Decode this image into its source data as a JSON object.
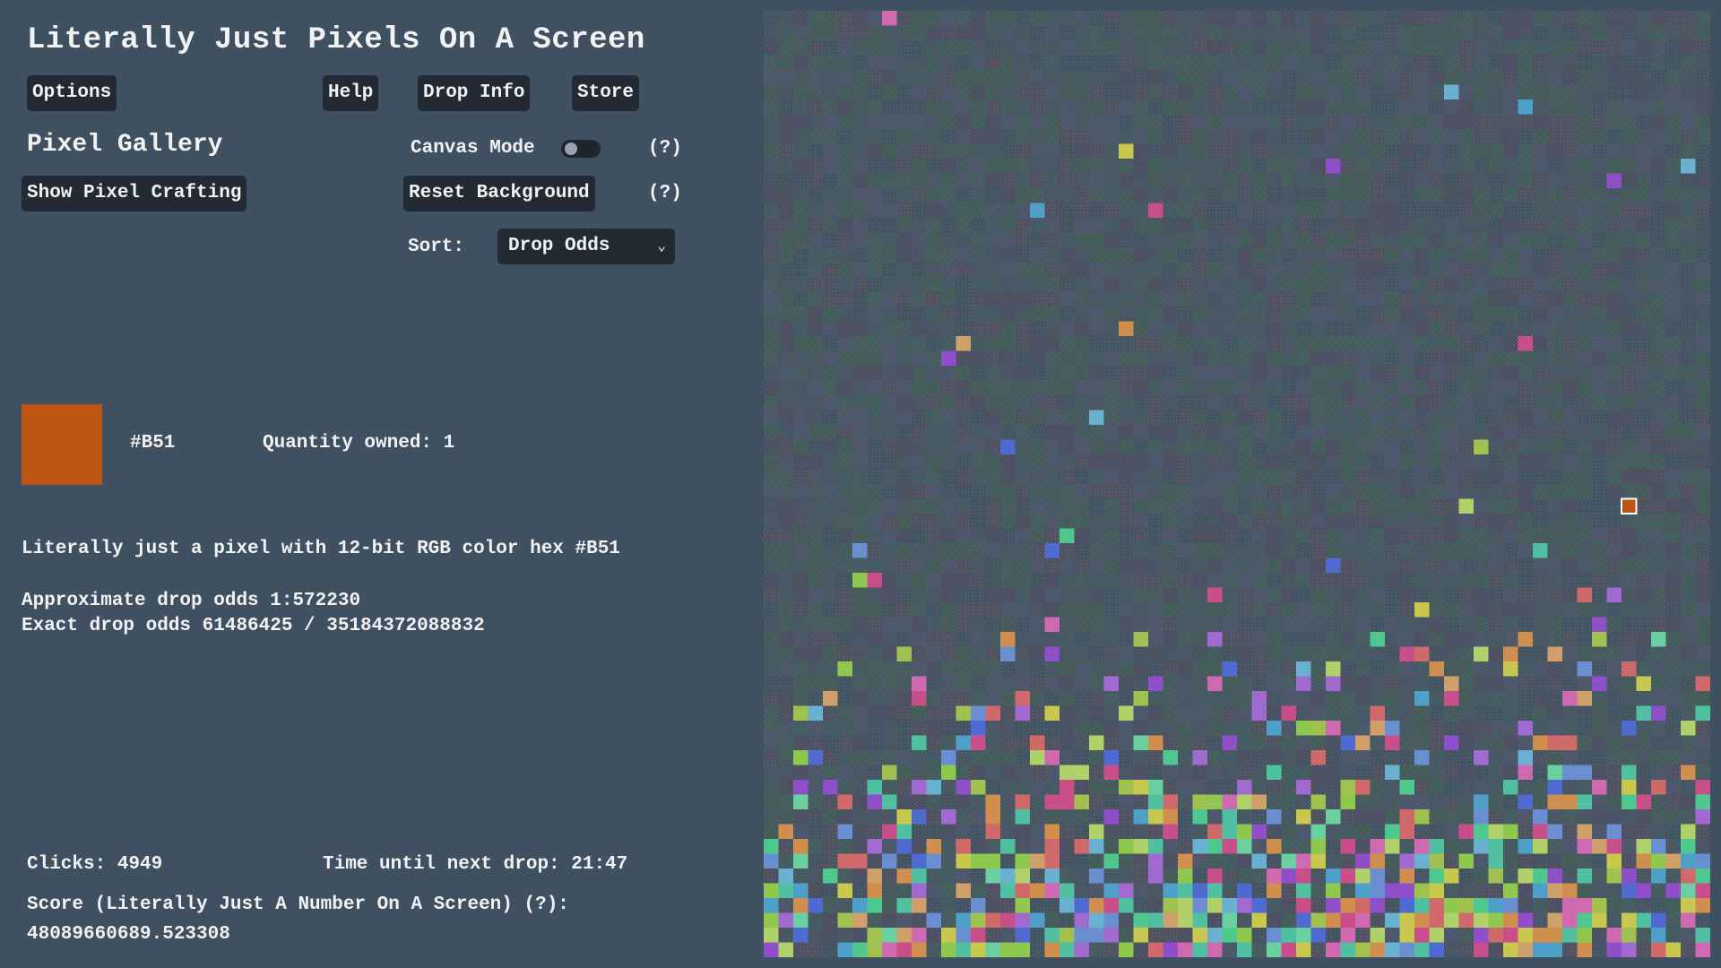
{
  "title": "Literally Just Pixels On A Screen",
  "nav": {
    "options": "Options",
    "help": "Help",
    "drop_info": "Drop Info",
    "store": "Store"
  },
  "gallery": {
    "title": "Pixel Gallery",
    "canvas_mode_label": "Canvas Mode",
    "canvas_mode_on": false,
    "help_marker": "(?)",
    "show_crafting": "Show Pixel Crafting",
    "reset_background": "Reset Background",
    "sort_label": "Sort:",
    "sort_value": "Drop Odds"
  },
  "selected_pixel": {
    "color": "#BB5511",
    "hex": "#B51",
    "quantity_label": "Quantity owned: 1",
    "description": "Literally just a pixel with 12-bit RGB color hex #B51",
    "approx_odds": "Approximate drop odds 1:572230",
    "exact_odds": "Exact drop odds 61486425 / 35184372088832"
  },
  "stats": {
    "clicks": "Clicks: 4949",
    "next_drop": "Time until next drop: 21:47",
    "score_label": "Score (Literally Just A Number On A Screen) (?):",
    "score_value": "48089660689.523308"
  },
  "canvas": {
    "grid_columns": 64,
    "grid_rows": 64,
    "highlighted_pixel_color": "#BB5511",
    "owned_palette": [
      "#4fa0c8",
      "#6a8fd0",
      "#c84f8a",
      "#d08f4f",
      "#8fc84f",
      "#4fc88f",
      "#c8c84f",
      "#8f4fc8",
      "#4f6ad0",
      "#d06a6a",
      "#6ad0a0",
      "#a06ad0",
      "#d0a06a",
      "#6ab0d0",
      "#b0d06a",
      "#d06ab0",
      "#50c0a0",
      "#a0c050"
    ]
  }
}
